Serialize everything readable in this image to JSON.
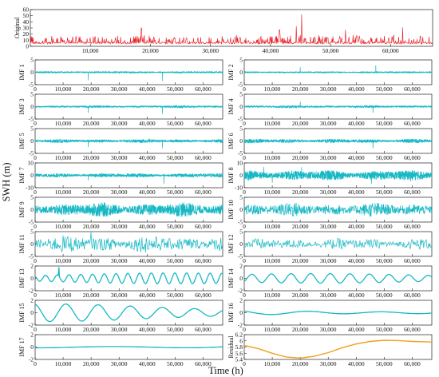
{
  "chart_data": {
    "type": "line",
    "xlabel": "Time (h)",
    "ylabel": "SWH (m)",
    "line_colors": {
      "original": "#e8141c",
      "imf": "#17b8c4",
      "residual": "#f0a020"
    },
    "original": {
      "label": "Original",
      "x_range": [
        0,
        67000
      ],
      "x_ticks": [
        "10,000",
        "20,000",
        "30,000",
        "40,000",
        "50,000",
        "60,000"
      ],
      "y_ticks": [
        "0",
        "10",
        "20",
        "30",
        "40",
        "50",
        "60"
      ],
      "ylim": [
        0,
        60
      ],
      "baseline": 5,
      "peaks": [
        [
          45200,
          52
        ],
        [
          44300,
          33
        ],
        [
          18500,
          30
        ],
        [
          41500,
          27
        ],
        [
          62000,
          31
        ],
        [
          52500,
          27
        ]
      ]
    },
    "panels": [
      {
        "label": "IMF 1",
        "x_ticks": [
          "0",
          "10,000",
          "20,000",
          "30,000",
          "40,000",
          "50,000",
          "60,000"
        ],
        "y_ticks": [
          "-5",
          "0",
          "5"
        ],
        "ylim": [
          -5,
          5
        ],
        "amp": 0.25,
        "period": 2,
        "spikes": [
          [
            19000,
            3.2
          ],
          [
            45500,
            3.5
          ]
        ]
      },
      {
        "label": "IMF 2",
        "x_ticks": [
          "0",
          "10,000",
          "20,000",
          "30,000",
          "40,000",
          "50,000",
          "60,000"
        ],
        "y_ticks": [
          "-5",
          "0",
          "5"
        ],
        "ylim": [
          -5,
          5
        ],
        "amp": 0.2,
        "period": 4,
        "spikes": [
          [
            20000,
            2.0
          ],
          [
            47000,
            2.8
          ]
        ]
      },
      {
        "label": "IMF 3",
        "x_ticks": [
          "0",
          "10,000",
          "20,000",
          "30,000",
          "40,000",
          "50,000",
          "60,000"
        ],
        "y_ticks": [
          "-5",
          "0",
          "5"
        ],
        "ylim": [
          -5,
          5
        ],
        "amp": 0.3,
        "period": 8,
        "spikes": [
          [
            19000,
            2.5
          ],
          [
            45500,
            3.0
          ]
        ]
      },
      {
        "label": "IMF 4",
        "x_ticks": [
          "0",
          "10,000",
          "20,000",
          "30,000",
          "40,000",
          "50,000",
          "60,000"
        ],
        "y_ticks": [
          "-5",
          "0",
          "5"
        ],
        "ylim": [
          -5,
          5
        ],
        "amp": 0.35,
        "period": 16,
        "spikes": [
          [
            20000,
            2.0
          ],
          [
            46000,
            2.5
          ]
        ]
      },
      {
        "label": "IMF 5",
        "x_ticks": [
          "0",
          "10,000",
          "20,000",
          "30,000",
          "40,000",
          "50,000",
          "60,000"
        ],
        "y_ticks": [
          "-5",
          "0",
          "5"
        ],
        "ylim": [
          -5,
          5
        ],
        "amp": 0.5,
        "period": 30,
        "spikes": [
          [
            19000,
            2.5
          ],
          [
            45500,
            3.0
          ]
        ]
      },
      {
        "label": "IMF 6",
        "x_ticks": [
          "0",
          "10,000",
          "20,000",
          "30,000",
          "40,000",
          "50,000",
          "60,000"
        ],
        "y_ticks": [
          "-5",
          "0",
          "5"
        ],
        "ylim": [
          -5,
          5
        ],
        "amp": 0.6,
        "period": 60,
        "spikes": [
          [
            46000,
            3.0
          ]
        ]
      },
      {
        "label": "IMF 7",
        "x_ticks": [
          "0",
          "10,000",
          "20,000",
          "30,000",
          "40,000",
          "50,000",
          "60,000"
        ],
        "y_ticks": [
          "-10",
          "0",
          "10"
        ],
        "ylim": [
          -10,
          10
        ],
        "amp": 1.2,
        "period": 110,
        "spikes": [
          [
            46000,
            7.0
          ],
          [
            19000,
            4.0
          ]
        ]
      },
      {
        "label": "IMF 8",
        "x_ticks": [
          "0",
          "10,000",
          "20,000",
          "30,000",
          "40,000",
          "50,000",
          "60,000"
        ],
        "y_ticks": [
          "-10",
          "0",
          "10"
        ],
        "ylim": [
          -10,
          10
        ],
        "amp": 3.0,
        "period": 200,
        "spikes": [
          [
            7000,
            7.0
          ],
          [
            10000,
            6.0
          ],
          [
            20500,
            6.5
          ],
          [
            45500,
            7.0
          ]
        ]
      },
      {
        "label": "IMF 9",
        "x_ticks": [
          "0",
          "10,000",
          "20,000",
          "30,000",
          "40,000",
          "50,000",
          "60,000"
        ],
        "y_ticks": [
          "-5",
          "0",
          "5"
        ],
        "ylim": [
          -5,
          5
        ],
        "amp": 2.0,
        "period": 380,
        "spikes": []
      },
      {
        "label": "IMF 10",
        "x_ticks": [
          "0",
          "10,000",
          "20,000",
          "30,000",
          "40,000",
          "50,000",
          "60,000"
        ],
        "y_ticks": [
          "-5",
          "0",
          "5"
        ],
        "ylim": [
          -5,
          5
        ],
        "amp": 2.0,
        "period": 700,
        "spikes": []
      },
      {
        "label": "IMF 11",
        "x_ticks": [
          "0",
          "10,000",
          "20,000",
          "30,000",
          "40,000",
          "50,000",
          "60,000"
        ],
        "y_ticks": [
          "-5",
          "0",
          "5"
        ],
        "ylim": [
          -5,
          5
        ],
        "amp": 2.4,
        "period": 1300,
        "spikes": [
          [
            20000,
            4.8
          ]
        ]
      },
      {
        "label": "IMF 12",
        "x_ticks": [
          "0",
          "10,000",
          "20,000",
          "30,000",
          "40,000",
          "50,000",
          "60,000"
        ],
        "y_ticks": [
          "-5",
          "0",
          "5"
        ],
        "ylim": [
          -5,
          5
        ],
        "amp": 1.6,
        "period": 2400,
        "spikes": []
      },
      {
        "label": "IMF 13",
        "x_ticks": [
          "0",
          "10,000",
          "20,000",
          "30,000",
          "40,000",
          "50,000",
          "60,000"
        ],
        "y_ticks": [
          "-2",
          "0",
          "2"
        ],
        "ylim": [
          -2,
          2
        ],
        "amp": 0.8,
        "period": 4200,
        "spikes": [
          [
            8500,
            1.8
          ]
        ]
      },
      {
        "label": "IMF 14",
        "x_ticks": [
          "0",
          "10,000",
          "20,000",
          "30,000",
          "40,000",
          "50,000",
          "60,000"
        ],
        "y_ticks": [
          "-2",
          "0",
          "2"
        ],
        "ylim": [
          -2,
          2
        ],
        "amp": 0.7,
        "period": 7000,
        "spikes": []
      },
      {
        "label": "IMF 15",
        "x_ticks": [
          "0",
          "10,000",
          "20,000",
          "30,000",
          "40,000",
          "50,000",
          "60,000"
        ],
        "y_ticks": [
          "-2",
          "0",
          "2"
        ],
        "ylim": [
          -2,
          2
        ],
        "amp": 1.3,
        "period": 11500,
        "spikes": []
      },
      {
        "label": "IMF 16",
        "x_ticks": [
          "0",
          "10,000",
          "20,000",
          "30,000",
          "40,000",
          "50,000",
          "60,000"
        ],
        "y_ticks": [
          "-2",
          "0",
          "2"
        ],
        "ylim": [
          -2,
          2
        ],
        "amp": 0.35,
        "period": 26000,
        "spikes": []
      },
      {
        "label": "IMF 17",
        "x_ticks": [
          "0",
          "10,000",
          "20,000",
          "30,000",
          "40,000",
          "50,000",
          "60,000"
        ],
        "y_ticks": [
          "-2",
          "0",
          "2"
        ],
        "ylim": [
          -2,
          2
        ],
        "amp": 0.2,
        "period": 50000,
        "spikes": []
      },
      {
        "label": "Residual",
        "x_ticks": [
          "0",
          "10,000",
          "20,000",
          "30,000",
          "40,000",
          "50,000",
          "60,000"
        ],
        "y_ticks": [
          "5.4",
          "5.6",
          "5.8",
          "6",
          "6.2"
        ],
        "ylim": [
          5.4,
          6.2
        ],
        "residual": true,
        "points": [
          [
            0,
            5.85
          ],
          [
            5000,
            5.75
          ],
          [
            10000,
            5.6
          ],
          [
            15000,
            5.48
          ],
          [
            20000,
            5.44
          ],
          [
            25000,
            5.5
          ],
          [
            30000,
            5.62
          ],
          [
            35000,
            5.78
          ],
          [
            40000,
            5.9
          ],
          [
            45000,
            5.98
          ],
          [
            50000,
            6.02
          ],
          [
            55000,
            6.01
          ],
          [
            60000,
            5.98
          ],
          [
            65000,
            5.97
          ],
          [
            67000,
            5.96
          ]
        ]
      }
    ]
  }
}
